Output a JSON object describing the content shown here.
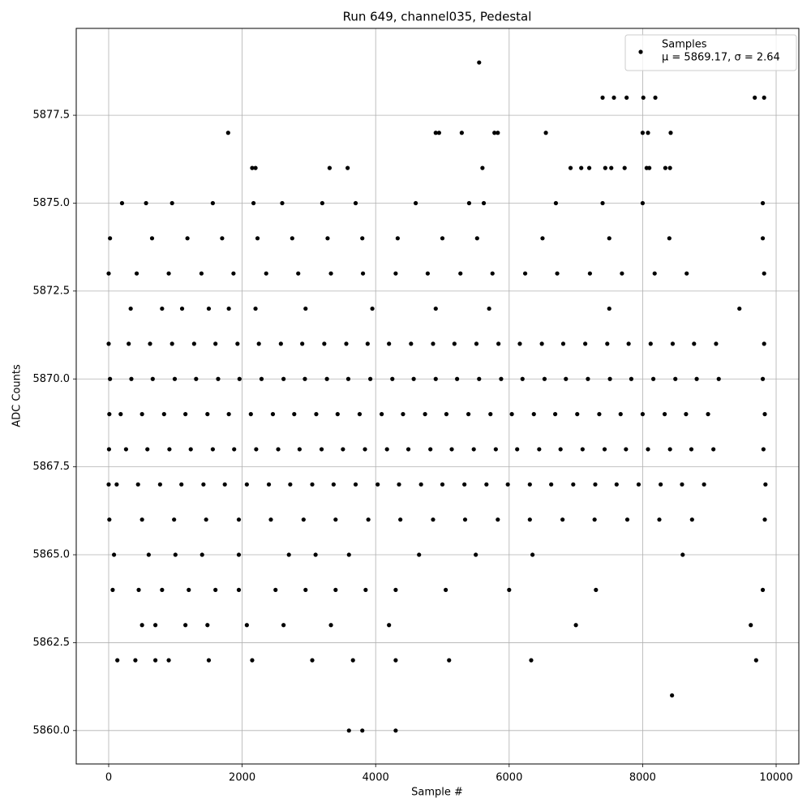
{
  "chart_data": {
    "type": "scatter",
    "title": "Run 649, channel035, Pedestal",
    "xlabel": "Sample #",
    "ylabel": "ADC Counts",
    "legend_text": "μ = 5869.17, σ = 2.64",
    "legend": "upper right",
    "grid": true,
    "xlim": [
      -486,
      10340
    ],
    "ylim": [
      5859.05,
      5879.97
    ],
    "xticks": [
      0,
      2000,
      4000,
      6000,
      8000,
      10000
    ],
    "yticks": [
      {
        "value": 5860,
        "label": "5860.0"
      },
      {
        "value": 5862.5,
        "label": "5862.5"
      },
      {
        "value": 5865,
        "label": "5865.0"
      },
      {
        "value": 5867.5,
        "label": "5867.5"
      },
      {
        "value": 5870,
        "label": "5870.0"
      },
      {
        "value": 5872.5,
        "label": "5872.5"
      },
      {
        "value": 5875,
        "label": "5875.0"
      },
      {
        "value": 5877.5,
        "label": "5877.5"
      }
    ],
    "series": [
      {
        "name": "Samples",
        "color": "#000000",
        "x": [
          0,
          300,
          620,
          950,
          1280,
          1600,
          1930,
          2250,
          2580,
          2900,
          3230,
          3560,
          3880,
          4200,
          4530,
          4860,
          5180,
          5510,
          5840,
          6160,
          6490,
          6810,
          7140,
          7470,
          7790,
          8120,
          8450,
          8770,
          9100,
          9820,
          20,
          340,
          660,
          990,
          1310,
          1640,
          1960,
          2290,
          2620,
          2940,
          3270,
          3590,
          3920,
          4250,
          4570,
          4900,
          5220,
          5550,
          5880,
          6200,
          6530,
          6850,
          7180,
          7510,
          7830,
          8160,
          8490,
          8810,
          9140,
          9800,
          10,
          180,
          500,
          830,
          1150,
          1480,
          1800,
          2130,
          2460,
          2780,
          3110,
          3430,
          3760,
          4090,
          4410,
          4740,
          5060,
          5390,
          5720,
          6040,
          6370,
          6690,
          7020,
          7350,
          7670,
          8000,
          8330,
          8650,
          8980,
          9830,
          5,
          260,
          580,
          910,
          1230,
          1560,
          1880,
          2210,
          2540,
          2860,
          3190,
          3510,
          3840,
          4170,
          4490,
          4820,
          5140,
          5470,
          5800,
          6120,
          6450,
          6770,
          7100,
          7430,
          7750,
          8080,
          8410,
          8730,
          9060,
          9810,
          0,
          120,
          440,
          770,
          1090,
          1420,
          1740,
          2070,
          2400,
          2720,
          3050,
          3370,
          3700,
          4030,
          4350,
          4680,
          5000,
          5330,
          5660,
          5980,
          6310,
          6630,
          6960,
          7290,
          7610,
          7940,
          8270,
          8590,
          8920,
          9840,
          10,
          500,
          980,
          1460,
          1950,
          2430,
          2920,
          3400,
          3890,
          4370,
          4860,
          5340,
          5830,
          6310,
          6800,
          7280,
          7770,
          8250,
          8740,
          9830,
          0,
          420,
          900,
          1390,
          1870,
          2360,
          2840,
          3330,
          3810,
          4300,
          4780,
          5270,
          5750,
          6240,
          6720,
          7210,
          7690,
          8180,
          8660,
          9820,
          20,
          650,
          1180,
          1700,
          2230,
          2750,
          3280,
          3800,
          4330,
          5000,
          5520,
          6500,
          7500,
          8400,
          9800,
          200,
          560,
          950,
          1560,
          2170,
          2600,
          3200,
          3700,
          4600,
          5400,
          5620,
          6700,
          7400,
          8000,
          9800,
          60,
          450,
          800,
          1200,
          1600,
          1950,
          2500,
          2950,
          3400,
          3850,
          4300,
          5050,
          6000,
          7300,
          9800,
          80,
          600,
          1000,
          1400,
          1950,
          2700,
          3100,
          3600,
          4650,
          5500,
          6350,
          8600,
          330,
          800,
          1100,
          1500,
          1800,
          2200,
          2950,
          3950,
          4900,
          5700,
          7500,
          9450,
          500,
          700,
          1150,
          1480,
          2070,
          2620,
          3330,
          4200,
          7000,
          9620,
          130,
          400,
          700,
          900,
          1500,
          2150,
          3050,
          3660,
          4300,
          5100,
          6330,
          9700,
          5550,
          1790,
          4900,
          4950,
          5290,
          5780,
          5830,
          6550,
          8000,
          8080,
          8420,
          7400,
          7570,
          7760,
          8010,
          8190,
          9680,
          9820,
          2150,
          2200,
          3310,
          3580,
          5600,
          6920,
          7080,
          7200,
          7440,
          7530,
          7730,
          8060,
          8100,
          8340,
          8410,
          8440,
          3600,
          3800,
          4300
        ],
        "values": [
          5871,
          5871,
          5871,
          5871,
          5871,
          5871,
          5871,
          5871,
          5871,
          5871,
          5871,
          5871,
          5871,
          5871,
          5871,
          5871,
          5871,
          5871,
          5871,
          5871,
          5871,
          5871,
          5871,
          5871,
          5871,
          5871,
          5871,
          5871,
          5871,
          5871,
          5870,
          5870,
          5870,
          5870,
          5870,
          5870,
          5870,
          5870,
          5870,
          5870,
          5870,
          5870,
          5870,
          5870,
          5870,
          5870,
          5870,
          5870,
          5870,
          5870,
          5870,
          5870,
          5870,
          5870,
          5870,
          5870,
          5870,
          5870,
          5870,
          5870,
          5869,
          5869,
          5869,
          5869,
          5869,
          5869,
          5869,
          5869,
          5869,
          5869,
          5869,
          5869,
          5869,
          5869,
          5869,
          5869,
          5869,
          5869,
          5869,
          5869,
          5869,
          5869,
          5869,
          5869,
          5869,
          5869,
          5869,
          5869,
          5869,
          5869,
          5868,
          5868,
          5868,
          5868,
          5868,
          5868,
          5868,
          5868,
          5868,
          5868,
          5868,
          5868,
          5868,
          5868,
          5868,
          5868,
          5868,
          5868,
          5868,
          5868,
          5868,
          5868,
          5868,
          5868,
          5868,
          5868,
          5868,
          5868,
          5868,
          5868,
          5867,
          5867,
          5867,
          5867,
          5867,
          5867,
          5867,
          5867,
          5867,
          5867,
          5867,
          5867,
          5867,
          5867,
          5867,
          5867,
          5867,
          5867,
          5867,
          5867,
          5867,
          5867,
          5867,
          5867,
          5867,
          5867,
          5867,
          5867,
          5867,
          5867,
          5866,
          5866,
          5866,
          5866,
          5866,
          5866,
          5866,
          5866,
          5866,
          5866,
          5866,
          5866,
          5866,
          5866,
          5866,
          5866,
          5866,
          5866,
          5866,
          5866,
          5873,
          5873,
          5873,
          5873,
          5873,
          5873,
          5873,
          5873,
          5873,
          5873,
          5873,
          5873,
          5873,
          5873,
          5873,
          5873,
          5873,
          5873,
          5873,
          5873,
          5874,
          5874,
          5874,
          5874,
          5874,
          5874,
          5874,
          5874,
          5874,
          5874,
          5874,
          5874,
          5874,
          5874,
          5874,
          5875,
          5875,
          5875,
          5875,
          5875,
          5875,
          5875,
          5875,
          5875,
          5875,
          5875,
          5875,
          5875,
          5875,
          5875,
          5864,
          5864,
          5864,
          5864,
          5864,
          5864,
          5864,
          5864,
          5864,
          5864,
          5864,
          5864,
          5864,
          5864,
          5864,
          5865,
          5865,
          5865,
          5865,
          5865,
          5865,
          5865,
          5865,
          5865,
          5865,
          5865,
          5865,
          5872,
          5872,
          5872,
          5872,
          5872,
          5872,
          5872,
          5872,
          5872,
          5872,
          5872,
          5872,
          5863,
          5863,
          5863,
          5863,
          5863,
          5863,
          5863,
          5863,
          5863,
          5863,
          5862,
          5862,
          5862,
          5862,
          5862,
          5862,
          5862,
          5862,
          5862,
          5862,
          5862,
          5862,
          5879,
          5877,
          5877,
          5877,
          5877,
          5877,
          5877,
          5877,
          5877,
          5877,
          5877,
          5878,
          5878,
          5878,
          5878,
          5878,
          5878,
          5878,
          5876,
          5876,
          5876,
          5876,
          5876,
          5876,
          5876,
          5876,
          5876,
          5876,
          5876,
          5876,
          5876,
          5876,
          5876,
          5861,
          5860,
          5860,
          5860
        ]
      }
    ]
  }
}
